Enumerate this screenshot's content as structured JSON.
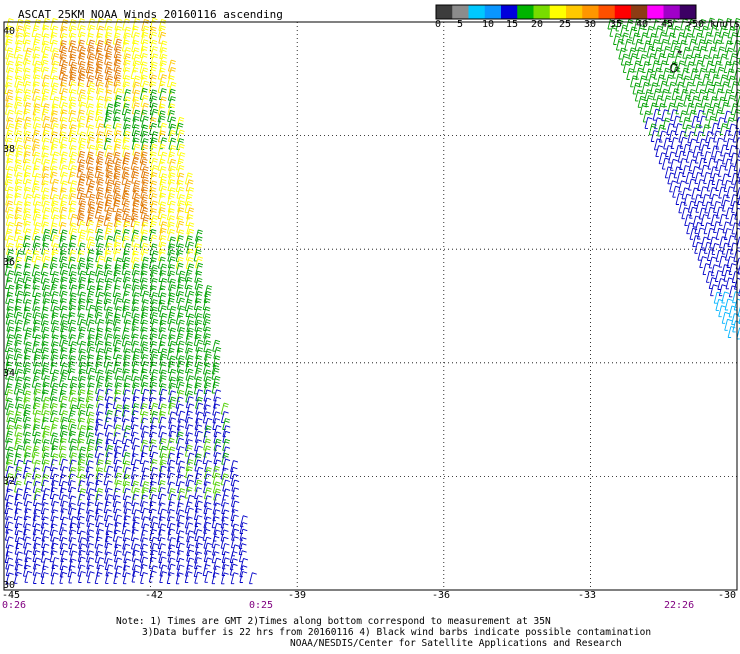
{
  "title": "ASCAT 25KM NOAA Winds 20160116 ascending",
  "legend": {
    "labels": [
      "0",
      "5",
      "10",
      "15",
      "20",
      "25",
      "30",
      "35",
      "40",
      "45",
      ">50 knots"
    ],
    "colors": [
      "#3c3c3c",
      "#8c8c8c",
      "#00c8ff",
      "#0a96ff",
      "#0000dc",
      "#00b400",
      "#78dc00",
      "#ffff00",
      "#ffc800",
      "#ff9600",
      "#ff5000",
      "#ff0000",
      "#8c3c14",
      "#ff00ff",
      "#a000c8",
      "#3c0064"
    ]
  },
  "map": {
    "lon_ticks": [
      "-45",
      "-42",
      "-39",
      "-36",
      "-33",
      "-30"
    ],
    "lat_ticks": [
      "40",
      "38",
      "36",
      "34",
      "32",
      "30"
    ],
    "lon_values": [
      -45,
      -42,
      -39,
      -36,
      -33,
      -30
    ],
    "lat_values": [
      40,
      38,
      36,
      34,
      32,
      30
    ]
  },
  "times": [
    "0:26",
    "0:25",
    "22:26"
  ],
  "notes": {
    "line1": "Note: 1) Times are GMT 2)Times along bottom correspond to measurement at 35N",
    "line2": "3)Data buffer is 22 hrs from 20160116 4) Black wind barbs indicate possible contamination",
    "line3": "NOAA/NESDIS/Center for Satellite Applications and Research"
  },
  "colors": {
    "blue": "#0000c8",
    "green": "#00a000",
    "lightgreen": "#50d000",
    "yellow": "#ffff00",
    "gold": "#ffc800",
    "orange": "#e07800",
    "cyan": "#00b4ff"
  }
}
